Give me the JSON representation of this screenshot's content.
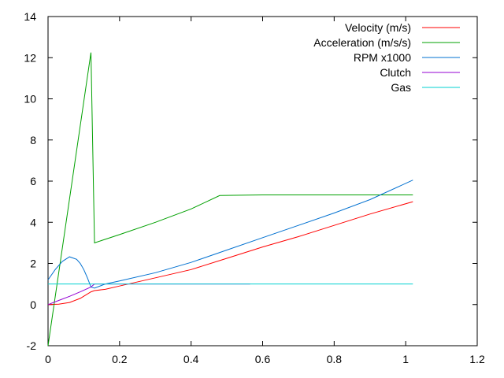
{
  "chart_data": {
    "type": "line",
    "title": "",
    "xlabel": "",
    "ylabel": "",
    "xlim": [
      0,
      1.2
    ],
    "ylim": [
      -2,
      14
    ],
    "x_ticks": [
      0,
      0.2,
      0.4,
      0.6,
      0.8,
      1,
      1.2
    ],
    "y_ticks": [
      -2,
      0,
      2,
      4,
      6,
      8,
      10,
      12,
      14
    ],
    "x_tick_labels": [
      "0",
      "0.2",
      "0.4",
      "0.6",
      "0.8",
      "1",
      "1.2"
    ],
    "y_tick_labels": [
      "-2",
      "0",
      "2",
      "4",
      "6",
      "8",
      "10",
      "12",
      "14"
    ],
    "grid": false,
    "legend_position": "top-right",
    "series": [
      {
        "name": "Velocity (m/s)",
        "color": "#ff0000",
        "points": [
          [
            0,
            0
          ],
          [
            0.03,
            0.02
          ],
          [
            0.06,
            0.1
          ],
          [
            0.09,
            0.3
          ],
          [
            0.12,
            0.62
          ],
          [
            0.13,
            0.68
          ],
          [
            0.16,
            0.74
          ],
          [
            0.2,
            0.9
          ],
          [
            0.3,
            1.3
          ],
          [
            0.4,
            1.7
          ],
          [
            0.5,
            2.25
          ],
          [
            0.6,
            2.8
          ],
          [
            0.7,
            3.3
          ],
          [
            0.8,
            3.85
          ],
          [
            0.9,
            4.4
          ],
          [
            1.02,
            5.0
          ]
        ]
      },
      {
        "name": "Acceleration (m/s/s)",
        "color": "#00a000",
        "points": [
          [
            0,
            -2
          ],
          [
            0.12,
            12.25
          ],
          [
            0.13,
            3.0
          ],
          [
            0.2,
            3.4
          ],
          [
            0.3,
            4.0
          ],
          [
            0.4,
            4.65
          ],
          [
            0.48,
            5.3
          ],
          [
            0.6,
            5.33
          ],
          [
            1.02,
            5.33
          ]
        ]
      },
      {
        "name": "RPM x1000",
        "color": "#0070d0",
        "points": [
          [
            0,
            1.2
          ],
          [
            0.02,
            1.7
          ],
          [
            0.04,
            2.1
          ],
          [
            0.06,
            2.32
          ],
          [
            0.08,
            2.2
          ],
          [
            0.09,
            2.0
          ],
          [
            0.1,
            1.7
          ],
          [
            0.11,
            1.3
          ],
          [
            0.12,
            0.85
          ],
          [
            0.13,
            0.8
          ],
          [
            0.16,
            1.0
          ],
          [
            0.2,
            1.15
          ],
          [
            0.3,
            1.55
          ],
          [
            0.4,
            2.05
          ],
          [
            0.5,
            2.65
          ],
          [
            0.6,
            3.25
          ],
          [
            0.7,
            3.85
          ],
          [
            0.8,
            4.45
          ],
          [
            0.9,
            5.1
          ],
          [
            1.02,
            6.05
          ]
        ]
      },
      {
        "name": "Clutch",
        "color": "#9400d3",
        "points": [
          [
            0,
            0
          ],
          [
            0.03,
            0.2
          ],
          [
            0.06,
            0.4
          ],
          [
            0.09,
            0.62
          ],
          [
            0.12,
            0.85
          ],
          [
            0.13,
            1.0
          ],
          [
            0.565,
            1.0
          ]
        ]
      },
      {
        "name": "Gas",
        "color": "#00d0d0",
        "points": [
          [
            0,
            1.0
          ],
          [
            1.02,
            1.0
          ]
        ]
      }
    ]
  }
}
